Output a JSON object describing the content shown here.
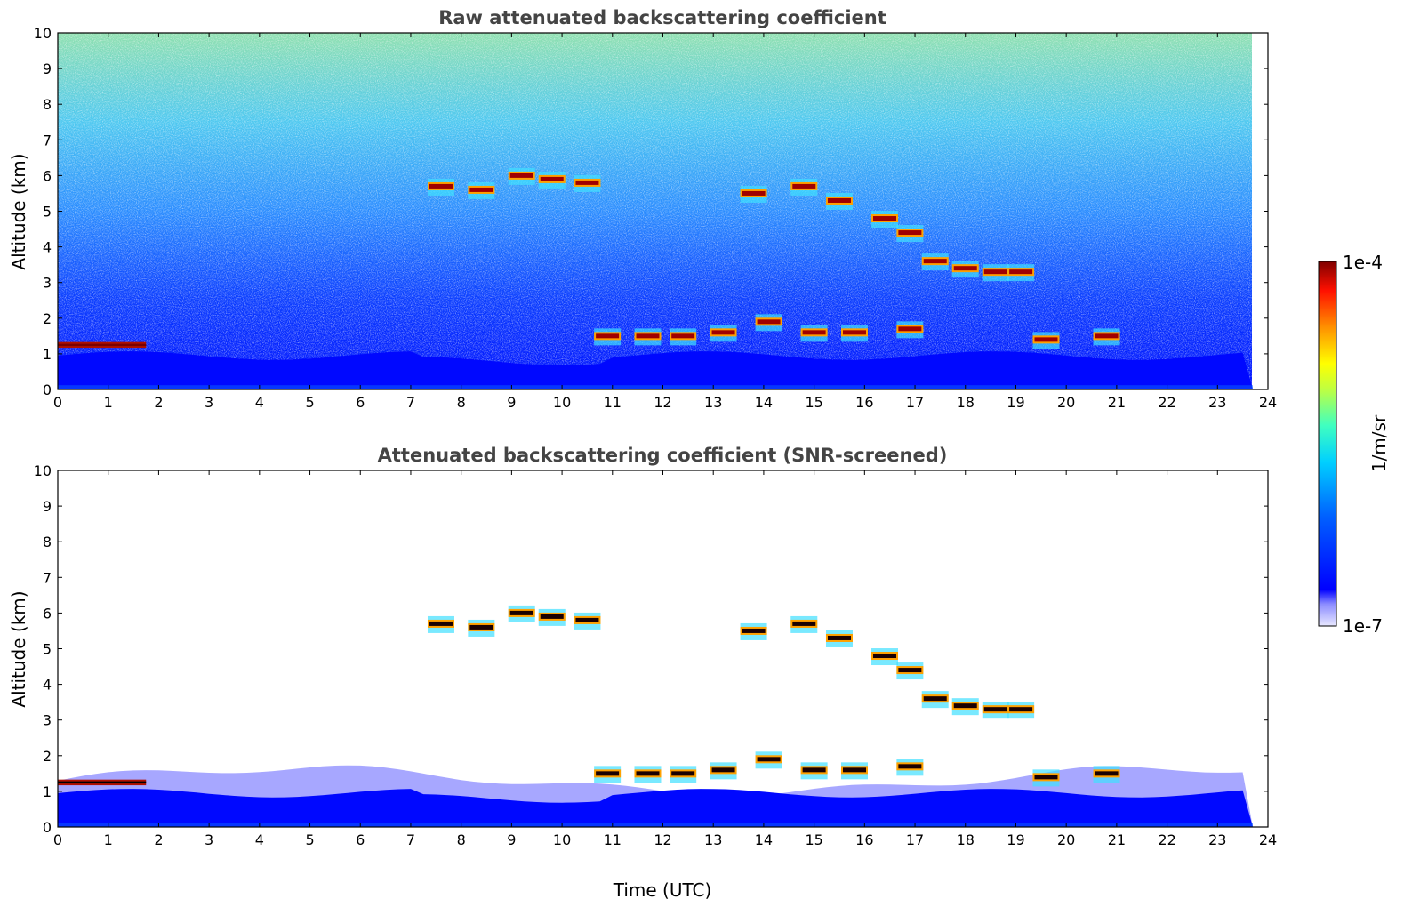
{
  "chart_data": [
    {
      "type": "heatmap",
      "title": "Raw attenuated backscattering coefficient",
      "xlabel": "",
      "ylabel": "Altitude (km)",
      "xlim": [
        0,
        24
      ],
      "ylim": [
        0,
        10
      ],
      "x_ticks": [
        0,
        1,
        2,
        3,
        4,
        5,
        6,
        7,
        8,
        9,
        10,
        11,
        12,
        13,
        14,
        15,
        16,
        17,
        18,
        19,
        20,
        21,
        22,
        23,
        24
      ],
      "y_ticks": [
        0,
        1,
        2,
        3,
        4,
        5,
        6,
        7,
        8,
        9,
        10
      ],
      "data_end_time": 23.7,
      "screened": false,
      "features": [
        {
          "kind": "boundary_layer",
          "t0": 0,
          "t1": 23.7,
          "top": 1.0
        },
        {
          "kind": "cloud_layer",
          "t0": 0,
          "t1": 1.75,
          "z": 1.25
        },
        {
          "kind": "cloud_segments",
          "points": [
            [
              7.6,
              5.7
            ],
            [
              8.4,
              5.6
            ],
            [
              9.2,
              6.0
            ],
            [
              9.8,
              5.9
            ],
            [
              10.5,
              5.8
            ],
            [
              13.8,
              5.5
            ],
            [
              14.8,
              5.7
            ],
            [
              15.5,
              5.3
            ],
            [
              16.4,
              4.8
            ],
            [
              16.9,
              4.4
            ],
            [
              17.4,
              3.6
            ],
            [
              18.0,
              3.4
            ],
            [
              18.6,
              3.3
            ],
            [
              19.1,
              3.3
            ]
          ]
        },
        {
          "kind": "low_cloud_segments",
          "points": [
            [
              10.9,
              1.5
            ],
            [
              11.7,
              1.5
            ],
            [
              12.4,
              1.5
            ],
            [
              13.2,
              1.6
            ],
            [
              14.1,
              1.9
            ],
            [
              15.0,
              1.6
            ],
            [
              15.8,
              1.6
            ],
            [
              16.9,
              1.7
            ],
            [
              19.6,
              1.4
            ],
            [
              20.8,
              1.5
            ]
          ]
        }
      ]
    },
    {
      "type": "heatmap",
      "title": "Attenuated backscattering coefficient (SNR-screened)",
      "xlabel": "Time (UTC)",
      "ylabel": "Altitude (km)",
      "xlim": [
        0,
        24
      ],
      "ylim": [
        0,
        10
      ],
      "x_ticks": [
        0,
        1,
        2,
        3,
        4,
        5,
        6,
        7,
        8,
        9,
        10,
        11,
        12,
        13,
        14,
        15,
        16,
        17,
        18,
        19,
        20,
        21,
        22,
        23,
        24
      ],
      "y_ticks": [
        0,
        1,
        2,
        3,
        4,
        5,
        6,
        7,
        8,
        9,
        10
      ],
      "data_end_time": 23.7,
      "screened": true,
      "features": [
        {
          "kind": "boundary_layer",
          "t0": 0,
          "t1": 23.7,
          "top": 1.3
        },
        {
          "kind": "cloud_layer",
          "t0": 0,
          "t1": 1.75,
          "z": 1.25
        },
        {
          "kind": "cloud_segments",
          "points": [
            [
              7.6,
              5.7
            ],
            [
              8.4,
              5.6
            ],
            [
              9.2,
              6.0
            ],
            [
              9.8,
              5.9
            ],
            [
              10.5,
              5.8
            ],
            [
              13.8,
              5.5
            ],
            [
              14.8,
              5.7
            ],
            [
              15.5,
              5.3
            ],
            [
              16.4,
              4.8
            ],
            [
              16.9,
              4.4
            ],
            [
              17.4,
              3.6
            ],
            [
              18.0,
              3.4
            ],
            [
              18.6,
              3.3
            ],
            [
              19.1,
              3.3
            ]
          ]
        },
        {
          "kind": "low_cloud_segments",
          "points": [
            [
              10.9,
              1.5
            ],
            [
              11.7,
              1.5
            ],
            [
              12.4,
              1.5
            ],
            [
              13.2,
              1.6
            ],
            [
              14.1,
              1.9
            ],
            [
              15.0,
              1.6
            ],
            [
              15.8,
              1.6
            ],
            [
              16.9,
              1.7
            ],
            [
              19.6,
              1.4
            ],
            [
              20.8,
              1.5
            ]
          ]
        }
      ]
    }
  ],
  "colorbar": {
    "max_label": "1e-4",
    "min_label": "1e-7",
    "unit_label": "1/m/sr",
    "scale": "log",
    "colormap": "jet"
  }
}
